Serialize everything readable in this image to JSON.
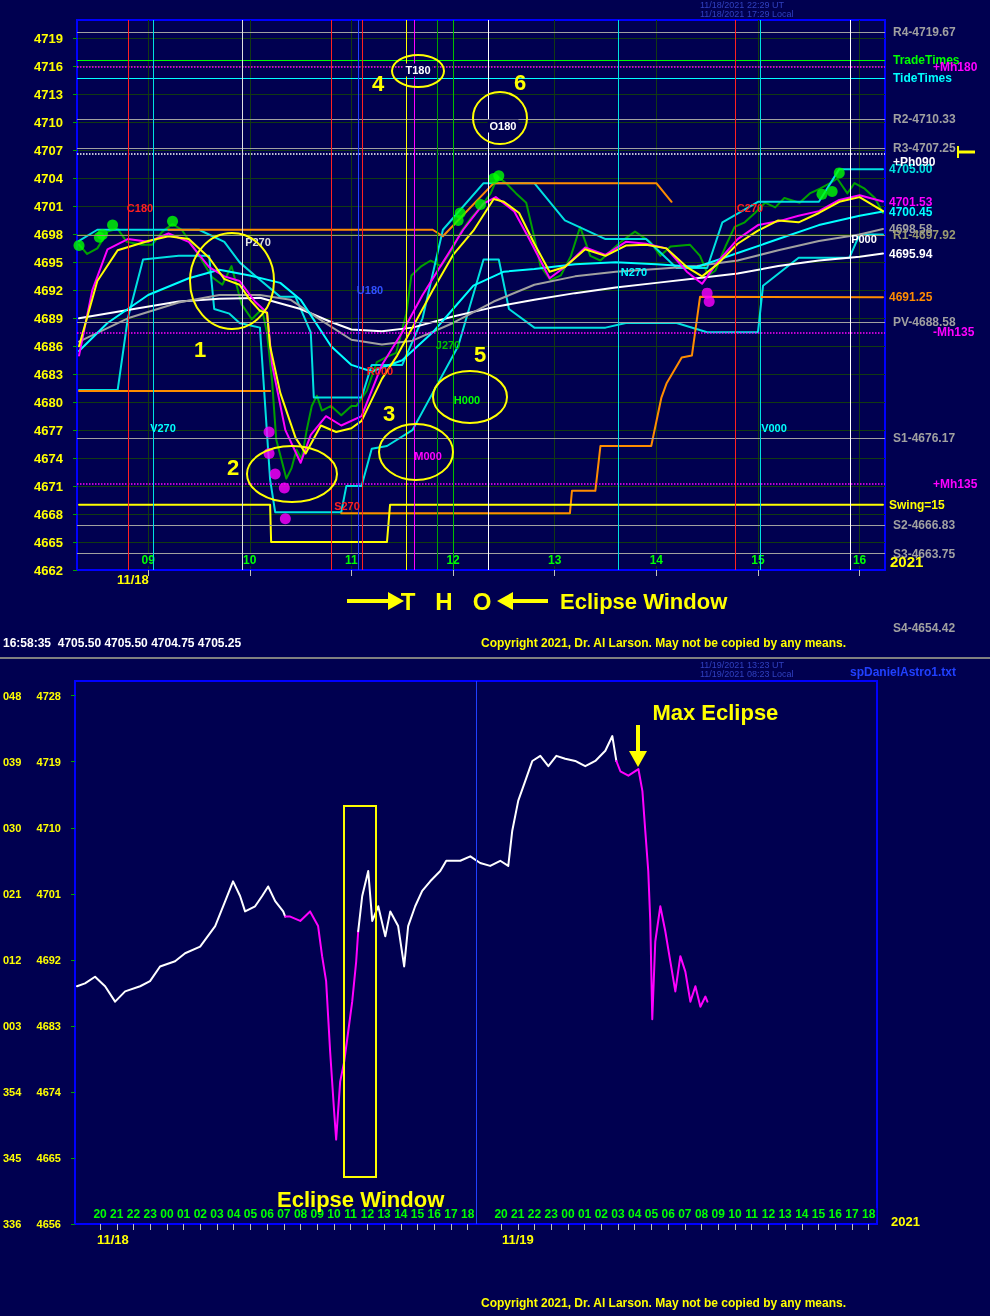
{
  "chart_data": [
    {
      "type": "line",
      "xlim": [
        8.3,
        16.25
      ],
      "xticks": [
        {
          "value": 9,
          "label": "09"
        },
        10,
        11,
        12,
        13,
        14,
        15,
        16
      ],
      "ylim": [
        4662,
        4721
      ],
      "yticks": [
        4662,
        4665,
        4668,
        4671,
        4674,
        4677,
        4680,
        4683,
        4686,
        4689,
        4692,
        4695,
        4698,
        4701,
        4704,
        4707,
        4710,
        4713,
        4716,
        4719
      ],
      "grid": true,
      "legend": false,
      "marker": "none",
      "line_style": "solid",
      "series": [
        {
          "color": "#00a000",
          "x": [
            8.32,
            8.4,
            8.5,
            8.6,
            8.7,
            8.79,
            8.94,
            9.04,
            9.14,
            9.24,
            9.33,
            9.43,
            9.53,
            9.63,
            9.73,
            9.82,
            9.92,
            10.02,
            10.12,
            10.17,
            10.22,
            10.26,
            10.31,
            10.36,
            10.41,
            10.46,
            10.51,
            10.56,
            10.61,
            10.66,
            10.71,
            10.8,
            10.9,
            11.0,
            11.05,
            11.15,
            11.25,
            11.34,
            11.44,
            11.54,
            11.59,
            11.69,
            11.78,
            11.88,
            11.98,
            12.08,
            12.18,
            12.27,
            12.37,
            12.44,
            12.52,
            12.62,
            12.72,
            12.81,
            12.86,
            12.96,
            13.06,
            13.16,
            13.25,
            13.35,
            13.45,
            13.55,
            13.65,
            13.79,
            13.94,
            14.04,
            14.14,
            14.33,
            14.43,
            14.51,
            14.58,
            14.68,
            14.77,
            14.87,
            14.97,
            15.07,
            15.17,
            15.26,
            15.41,
            15.51,
            15.61,
            15.71,
            15.78,
            15.88,
            15.95,
            16.05,
            16.15,
            16.23
          ],
          "values": [
            4696.9,
            4695.9,
            4696.5,
            4698.3,
            4698.6,
            4697.2,
            4696.9,
            4696.9,
            4698.3,
            4699.1,
            4698.5,
            4696.9,
            4695.2,
            4693.4,
            4692.6,
            4694.6,
            4690.5,
            4688.9,
            4690.0,
            4687.4,
            4682.2,
            4676.0,
            4673.9,
            4671.8,
            4672.9,
            4674.9,
            4673.9,
            4677.0,
            4679.6,
            4680.7,
            4679.1,
            4679.6,
            4678.6,
            4679.6,
            4679.6,
            4681.2,
            4684.3,
            4684.8,
            4685.3,
            4689.5,
            4693.6,
            4694.6,
            4695.2,
            4694.6,
            4696.2,
            4698.3,
            4699.8,
            4700.9,
            4702.4,
            4704.2,
            4703.5,
            4702.4,
            4701.4,
            4697.2,
            4694.6,
            4693.1,
            4693.6,
            4695.7,
            4698.8,
            4695.7,
            4695.2,
            4696.2,
            4697.2,
            4698.3,
            4697.2,
            4695.7,
            4696.7,
            4696.9,
            4695.7,
            4693.6,
            4694.1,
            4696.7,
            4698.8,
            4699.3,
            4700.3,
            4701.4,
            4700.9,
            4701.9,
            4701.4,
            4702.4,
            4702.9,
            4703.5,
            4704.0,
            4702.4,
            4703.5,
            4702.9,
            4701.9,
            4700.3
          ]
        },
        {
          "color": "#00e0e0",
          "x": [
            8.32,
            8.5,
            9.5,
            9.75,
            9.9,
            10.05,
            10.3,
            10.45,
            10.6,
            10.63,
            11.1,
            11.2,
            11.5,
            11.7,
            11.9,
            12.3,
            12.8,
            13.1,
            13.5,
            13.9,
            14.2,
            14.5,
            14.65,
            15.0,
            15.6,
            15.8,
            16.23
          ],
          "values": [
            4697.3,
            4698.5,
            4698.5,
            4697.2,
            4695,
            4693.6,
            4691.3,
            4691.3,
            4687.5,
            4680.5,
            4680.5,
            4684,
            4684,
            4689,
            4698.5,
            4703.5,
            4703.5,
            4699.5,
            4697.5,
            4697.5,
            4694.4,
            4694.4,
            4699.3,
            4701.5,
            4701.5,
            4705,
            4705
          ],
          "value_labels": [
            null,
            null,
            null,
            null,
            null,
            null,
            null,
            null,
            null,
            null,
            null,
            null,
            null,
            null,
            null,
            null,
            null,
            null,
            null,
            null,
            null,
            null,
            null,
            null,
            null,
            null,
            "4705.00"
          ]
        },
        {
          "color": "#00e0e0",
          "x": [
            8.32,
            8.7,
            8.8,
            8.95,
            9.3,
            9.6,
            9.65,
            9.8,
            9.9,
            10.1,
            10.2,
            10.25,
            10.9,
            10.95,
            11.1,
            11.2,
            11.35,
            11.6,
            11.8,
            12.05,
            12.3,
            12.45,
            12.55,
            12.8,
            13.5,
            13.7,
            14.2,
            14.5,
            15.0,
            15.05,
            15.4,
            15.9,
            16.0,
            16.23
          ],
          "values": [
            4681.3,
            4681.3,
            4689,
            4695.3,
            4695.7,
            4695.7,
            4690,
            4689.5,
            4688.5,
            4688,
            4671.7,
            4668.2,
            4668.2,
            4671,
            4671,
            4675,
            4675.3,
            4677,
            4681,
            4686,
            4695.3,
            4695.3,
            4690,
            4688,
            4688,
            4688.5,
            4688.5,
            4687.5,
            4687.5,
            4692.5,
            4695.5,
            4695.5,
            4698,
            4698
          ]
        },
        {
          "color": "#ff8c00",
          "x": [
            8.32,
            10.2,
            10.21,
            10.9,
            13.15,
            13.17,
            13.4,
            13.45,
            13.95,
            14.05,
            14.1,
            14.25,
            14.35,
            14.43,
            16.23
          ],
          "values": [
            4681.2,
            4681.2,
            null,
            4668.1,
            4668.1,
            4670.5,
            4670.5,
            4675.3,
            4675.3,
            4680.5,
            4682,
            4684.8,
            4685,
            4691.3,
            4691.25
          ],
          "value_labels": [
            null,
            null,
            null,
            null,
            null,
            null,
            null,
            null,
            null,
            null,
            null,
            null,
            null,
            null,
            "4691.25"
          ]
        },
        {
          "color": "#ff8c00",
          "x": [
            9.2,
            11.8,
            11.9,
            12.4,
            14.0,
            14.15
          ],
          "values": [
            4698.5,
            4698.5,
            4697.8,
            4703.5,
            4703.5,
            4701.5
          ]
        },
        {
          "name": "Swing=15",
          "color": "#ffff00",
          "x": [
            8.32,
            10.2,
            10.21,
            11.35,
            11.38,
            16.23
          ],
          "values": [
            4669,
            4669,
            4665,
            4665,
            4669,
            4669
          ]
        },
        {
          "color": "#ffffff",
          "x": [
            8.32,
            8.8,
            9.3,
            9.7,
            10.1,
            10.5,
            10.8,
            11.0,
            11.3,
            11.6,
            12.0,
            12.4,
            12.8,
            13.2,
            13.6,
            14.0,
            14.4,
            14.8,
            15.2,
            15.6,
            16.0,
            16.23
          ],
          "values": [
            4689,
            4689.9,
            4690.8,
            4691.1,
            4691.2,
            4690,
            4688.6,
            4687.8,
            4687.6,
            4688,
            4689.2,
            4690.2,
            4691,
            4691.7,
            4692.3,
            4692.8,
            4693.3,
            4693.8,
            4694.6,
            4695.2,
            4695.6,
            4695.94
          ],
          "value_labels": [
            null,
            null,
            null,
            null,
            null,
            null,
            null,
            null,
            null,
            null,
            null,
            null,
            null,
            null,
            null,
            null,
            null,
            null,
            null,
            null,
            null,
            "4695.94"
          ]
        },
        {
          "color": "#a0a0a0",
          "x": [
            8.32,
            8.8,
            9.3,
            9.7,
            10.1,
            10.4,
            10.7,
            11.0,
            11.3,
            11.6,
            12.0,
            12.4,
            12.8,
            13.2,
            13.6,
            14.0,
            14.4,
            14.8,
            15.2,
            15.6,
            16.0,
            16.23
          ],
          "values": [
            4686.5,
            4689,
            4690.7,
            4691.5,
            4691.5,
            4691,
            4688.8,
            4686.7,
            4686.2,
            4686.6,
            4688.5,
            4690.8,
            4692.6,
            4693.5,
            4694,
            4694.3,
            4694.6,
            4695.2,
            4696.3,
            4697.3,
            4698,
            4698.58
          ],
          "value_labels": [
            null,
            null,
            null,
            null,
            null,
            null,
            null,
            null,
            null,
            null,
            null,
            null,
            null,
            null,
            null,
            null,
            null,
            null,
            null,
            null,
            null,
            "4698.58"
          ]
        },
        {
          "color": "#00ffff",
          "x": [
            8.32,
            8.6,
            9.0,
            9.4,
            9.7,
            10.0,
            10.3,
            10.5,
            10.8,
            11.0,
            11.2,
            11.5,
            11.8,
            12.0,
            12.2,
            12.5,
            12.8,
            13.2,
            13.6,
            14.0,
            14.4,
            14.8,
            15.2,
            15.6,
            16.0,
            16.23
          ],
          "values": [
            4685.5,
            4688.5,
            4691.5,
            4693.3,
            4694.2,
            4693.6,
            4692.8,
            4691,
            4686,
            4684,
            4683.3,
            4684.5,
            4687.5,
            4690,
            4692.5,
            4694,
            4694.3,
            4694.8,
            4695,
            4694.8,
            4694.5,
            4696,
            4697.5,
            4699,
            4700,
            4700.45
          ],
          "value_labels": [
            null,
            null,
            null,
            null,
            null,
            null,
            null,
            null,
            null,
            null,
            null,
            null,
            null,
            null,
            null,
            null,
            null,
            null,
            null,
            null,
            null,
            null,
            null,
            null,
            null,
            "4700.45"
          ]
        },
        {
          "color": "#ff00ff",
          "x": [
            8.32,
            8.45,
            8.6,
            8.8,
            9.0,
            9.2,
            9.4,
            9.6,
            9.75,
            9.9,
            10.05,
            10.17,
            10.22,
            10.35,
            10.5,
            10.6,
            10.75,
            10.9,
            11.1,
            11.3,
            11.5,
            11.7,
            11.9,
            12.1,
            12.3,
            12.42,
            12.6,
            12.75,
            12.95,
            13.1,
            13.3,
            13.5,
            13.7,
            13.9,
            14.1,
            14.3,
            14.45,
            14.6,
            14.8,
            15.0,
            15.2,
            15.4,
            15.6,
            15.8,
            16.0,
            16.23
          ],
          "values": [
            4685,
            4692,
            4696.4,
            4697.5,
            4697.2,
            4698.1,
            4697.2,
            4694.5,
            4693.5,
            4693.0,
            4690.8,
            4689.6,
            4684,
            4677,
            4673.5,
            4676.5,
            4678.5,
            4677.5,
            4678.5,
            4684,
            4687.5,
            4691.5,
            4695,
            4698.5,
            4701.3,
            4702,
            4700.5,
            4697.5,
            4693.3,
            4694.5,
            4696.6,
            4695.8,
            4697.2,
            4697,
            4696.5,
            4694,
            4692.7,
            4695,
            4697.5,
            4699,
            4699.4,
            4700,
            4700.5,
            4701.7,
            4702.2,
            4701.53
          ],
          "value_labels": [
            null,
            null,
            null,
            null,
            null,
            null,
            null,
            null,
            null,
            null,
            null,
            null,
            null,
            null,
            null,
            null,
            null,
            null,
            null,
            null,
            null,
            null,
            null,
            null,
            null,
            null,
            null,
            null,
            null,
            null,
            null,
            null,
            null,
            null,
            null,
            null,
            null,
            null,
            null,
            null,
            null,
            null,
            null,
            null,
            null,
            "4701.53"
          ]
        },
        {
          "color": "#ffff00",
          "x": [
            8.32,
            8.5,
            8.7,
            9.0,
            9.2,
            9.4,
            9.6,
            9.75,
            9.9,
            10.0,
            10.1,
            10.17,
            10.2,
            10.3,
            10.45,
            10.55,
            10.7,
            10.85,
            11.0,
            11.1,
            11.3,
            11.45,
            11.6,
            11.8,
            12.0,
            12.2,
            12.4,
            12.5,
            12.65,
            12.8,
            12.95,
            13.1,
            13.3,
            13.5,
            13.7,
            13.9,
            14.1,
            14.3,
            14.45,
            14.6,
            14.8,
            15.0,
            15.2,
            15.4,
            15.6,
            15.8,
            16.0,
            16.23
          ],
          "values": [
            4686,
            4693,
            4696.3,
            4697.3,
            4697.8,
            4697.5,
            4695.5,
            4693.2,
            4692.6,
            4691.0,
            4689.8,
            4689.6,
            4686,
            4681,
            4676.2,
            4674.5,
            4677.5,
            4676.8,
            4677.2,
            4678,
            4682.5,
            4685,
            4688,
            4692,
            4695.8,
            4698.4,
            4701.8,
            4701.5,
            4700.3,
            4697,
            4694,
            4694.5,
            4696.4,
            4695.7,
            4696.8,
            4696.9,
            4696.5,
            4694.5,
            4693.5,
            4694.8,
            4697,
            4698.4,
            4699.5,
            4699.3,
            4700.3,
            4701.5,
            4702,
            4700.5
          ]
        },
        {
          "type": "scatter",
          "marker": "circle",
          "color": "#00ff00",
          "x": [
            8.32,
            8.52,
            8.55,
            8.65,
            9.24,
            12.05,
            12.07,
            12.27,
            12.4,
            12.45,
            15.63,
            15.73,
            15.8
          ],
          "values": [
            4696.8,
            4697.7,
            4698,
            4699,
            4699.4,
            4699.5,
            4700.3,
            4701.2,
            4704,
            4704.3,
            4702.3,
            4702.6,
            4704.6
          ]
        },
        {
          "type": "scatter",
          "marker": "circle",
          "color": "#ff00ff",
          "x": [
            10.19,
            10.19,
            10.25,
            10.34,
            10.35,
            14.5,
            14.52
          ],
          "values": [
            4676.8,
            4674.5,
            4672.3,
            4670.8,
            4667.5,
            4691.7,
            4690.8
          ]
        }
      ],
      "ref_lines": [
        {
          "axis": "y",
          "value": 4719.67,
          "label": "R4-4719.67",
          "color": "#a0a0a0"
        },
        {
          "axis": "y",
          "value": 4716.7,
          "label": "TradeTimes",
          "color": "#00ff00"
        },
        {
          "axis": "y",
          "value": 4716.0,
          "label": "+Mh180",
          "color": "#ff00ff",
          "line_style": "dotted"
        },
        {
          "axis": "y",
          "value": 4714.8,
          "label": "TideTimes",
          "color": "#00ffff"
        },
        {
          "axis": "y",
          "value": 4710.33,
          "label": "R2-4710.33",
          "color": "#a0a0a0"
        },
        {
          "axis": "y",
          "value": 4707.25,
          "label": "R3-4707.25",
          "color": "#a0a0a0"
        },
        {
          "axis": "y",
          "value": 4706.6,
          "label": "+Ph090",
          "color": "#ffffff",
          "line_style": "dotted"
        },
        {
          "axis": "y",
          "value": 4697.92,
          "label": "R1-4697.92",
          "color": "#9a9a70"
        },
        {
          "axis": "y",
          "value": 4688.58,
          "label": "PV-4688.58",
          "color": "#a0a0a0"
        },
        {
          "axis": "y",
          "value": 4687.5,
          "label": "-Mh135",
          "color": "#ff00ff",
          "line_style": "dotted"
        },
        {
          "axis": "y",
          "value": 4676.17,
          "label": "S1-4676.17",
          "color": "#a0a0a0"
        },
        {
          "axis": "y",
          "value": 4671.2,
          "label": "+Mh135",
          "color": "#ff00ff",
          "line_style": "dotted"
        },
        {
          "axis": "y",
          "value": 4666.83,
          "label": "S2-4666.83",
          "color": "#a0a0a0"
        },
        {
          "axis": "y",
          "value": 4663.75,
          "label": "S3-4663.75",
          "color": "#a0a0a0"
        },
        {
          "axis": "x",
          "value": 8.8,
          "color": "#ff2020"
        },
        {
          "axis": "x",
          "value": 9.05,
          "color": "#00e0e0"
        },
        {
          "axis": "x",
          "value": 9.93,
          "color": "#e0e0e0"
        },
        {
          "axis": "x",
          "value": 10.8,
          "color": "#ff2020"
        },
        {
          "axis": "x",
          "value": 11.07,
          "color": "#2040ff"
        },
        {
          "axis": "x",
          "value": 11.11,
          "color": "#ff2020"
        },
        {
          "axis": "x",
          "value": 11.54,
          "color": "#ffff00"
        },
        {
          "axis": "x",
          "value": 11.62,
          "color": "#ff00ff"
        },
        {
          "axis": "x",
          "value": 11.84,
          "color": "#00a000"
        },
        {
          "axis": "x",
          "value": 12.0,
          "color": "#00c000"
        },
        {
          "axis": "x",
          "value": 12.35,
          "color": "#ffffff"
        },
        {
          "axis": "x",
          "value": 13.63,
          "color": "#00e0e0"
        },
        {
          "axis": "x",
          "value": 14.78,
          "color": "#ff2020"
        },
        {
          "axis": "x",
          "value": 15.02,
          "color": "#00e0e0"
        },
        {
          "axis": "x",
          "value": 15.91,
          "color": "#ffffff"
        }
      ],
      "annotations": [
        "11/18",
        "2021",
        "T",
        "H",
        "O",
        "Eclipse Window",
        "16:58:35  4705.50 4705.50 4704.75 4705.25",
        "Copyright 2021, Dr. Al Larson. May not be copied by any means.",
        "S4-4654.42",
        "11/18/2021 22:29 UT",
        "11/18/2021 17:29 Local",
        "C180",
        "P270",
        "U180",
        "T180",
        "O180",
        "V270",
        "R000",
        "J270",
        "H000",
        "M000",
        "S270",
        "N270",
        "C270",
        "V000",
        "P000",
        "1",
        "2",
        "3",
        "4",
        "5",
        "6"
      ]
    },
    {
      "type": "line",
      "xlim": [
        18.5,
        66.5
      ],
      "xticks": [
        {
          "value": 20,
          "label": "20"
        },
        {
          "value": 21,
          "label": "21"
        },
        {
          "value": 22,
          "label": "22"
        },
        {
          "value": 23,
          "label": "23"
        },
        {
          "value": 24,
          "label": "00"
        },
        {
          "value": 25,
          "label": "01"
        },
        {
          "value": 26,
          "label": "02"
        },
        {
          "value": 27,
          "label": "03"
        },
        {
          "value": 28,
          "label": "04"
        },
        {
          "value": 29,
          "label": "05"
        },
        {
          "value": 30,
          "label": "06"
        },
        {
          "value": 31,
          "label": "07"
        },
        {
          "value": 32,
          "label": "08"
        },
        {
          "value": 33,
          "label": "09"
        },
        {
          "value": 34,
          "label": "10"
        },
        {
          "value": 35,
          "label": "11"
        },
        {
          "value": 36,
          "label": "12"
        },
        {
          "value": 37,
          "label": "13"
        },
        {
          "value": 38,
          "label": "14"
        },
        {
          "value": 39,
          "label": "15"
        },
        {
          "value": 40,
          "label": "16"
        },
        {
          "value": 41,
          "label": "17"
        },
        {
          "value": 42,
          "label": "18"
        },
        {
          "value": 44,
          "label": "20"
        },
        {
          "value": 45,
          "label": "21"
        },
        {
          "value": 46,
          "label": "22"
        },
        {
          "value": 47,
          "label": "23"
        },
        {
          "value": 48,
          "label": "00"
        },
        {
          "value": 49,
          "label": "01"
        },
        {
          "value": 50,
          "label": "02"
        },
        {
          "value": 51,
          "label": "03"
        },
        {
          "value": 52,
          "label": "04"
        },
        {
          "value": 53,
          "label": "05"
        },
        {
          "value": 54,
          "label": "06"
        },
        {
          "value": 55,
          "label": "07"
        },
        {
          "value": 56,
          "label": "08"
        },
        {
          "value": 57,
          "label": "09"
        },
        {
          "value": 58,
          "label": "10"
        },
        {
          "value": 59,
          "label": "11"
        },
        {
          "value": 60,
          "label": "12"
        },
        {
          "value": 61,
          "label": "13"
        },
        {
          "value": 62,
          "label": "14"
        },
        {
          "value": 63,
          "label": "15"
        },
        {
          "value": 64,
          "label": "16"
        },
        {
          "value": 65,
          "label": "17"
        },
        {
          "value": 66,
          "label": "18"
        }
      ],
      "ylim": [
        4656,
        4730
      ],
      "yticks": [
        4656,
        4665,
        4674,
        4683,
        4692,
        4701,
        4710,
        4719,
        4728
      ],
      "grid": false,
      "legend": false,
      "marker": "none",
      "line_style": "solid",
      "series": [
        {
          "color": "#ffffff",
          "x": [
            18.62,
            19.1,
            19.7,
            20.3,
            20.9,
            21.5,
            22.4,
            22.99,
            23.59,
            24.49,
            25.09,
            25.99,
            26.89,
            27.49,
            27.96,
            28.38,
            28.68,
            29.28,
            29.7,
            30.06,
            30.48,
            30.96,
            31.08
          ],
          "values": [
            4688.4,
            4688.8,
            4689.7,
            4688.4,
            4686.3,
            4687.7,
            4688.4,
            4689.1,
            4691.1,
            4691.8,
            4692.9,
            4693.8,
            4696.6,
            4700.0,
            4702.7,
            4700.7,
            4698.6,
            4699.3,
            4700.7,
            4702.0,
            4700.0,
            4698.6,
            4697.9
          ]
        },
        {
          "color": "#ff00ff",
          "x": [
            31.08,
            31.38,
            31.98,
            32.57,
            33.05,
            33.29,
            33.53,
            33.77,
            34.01,
            34.13,
            34.37,
            34.61,
            34.85,
            35.09,
            35.33,
            35.45
          ],
          "values": [
            4697.9,
            4697.9,
            4697.3,
            4698.6,
            4696.6,
            4692.5,
            4689.1,
            4679.5,
            4671.3,
            4667.5,
            4675.4,
            4678.1,
            4682.2,
            4686.3,
            4691.8,
            4695.9
          ]
        },
        {
          "color": "#ffffff",
          "x": [
            35.45,
            35.69,
            36.05,
            36.29,
            36.65,
            37.07,
            37.37,
            37.84,
            38.2,
            38.44,
            38.86,
            39.28,
            39.76,
            40.36,
            40.72,
            41.08,
            41.56,
            42.16,
            42.75,
            43.35,
            43.95,
            44.43,
            44.67,
            45.03,
            45.45,
            45.87,
            46.35,
            46.83,
            47.31,
            47.84,
            48.44,
            49.04,
            49.64,
            50.24,
            50.66,
            50.9
          ],
          "values": [
            4695.9,
            4700.7,
            4704.1,
            4697.3,
            4699.3,
            4695.2,
            4698.6,
            4696.6,
            4691.1,
            4696.6,
            4699.3,
            4701.4,
            4702.7,
            4704.1,
            4705.5,
            4705.5,
            4705.5,
            4706.1,
            4705.2,
            4704.8,
            4705.5,
            4704.8,
            4709.6,
            4713.7,
            4716.4,
            4719.1,
            4719.8,
            4718.4,
            4719.8,
            4719.4,
            4719.1,
            4718.4,
            4719.1,
            4720.5,
            4722.5,
            4719.1
          ]
        },
        {
          "color": "#ff00ff",
          "x": [
            50.9,
            51.14,
            51.62,
            52.22,
            52.46,
            52.63,
            52.81,
            52.93,
            53.05,
            53.23,
            53.53,
            53.83,
            54.13,
            54.43,
            54.73,
            55.03,
            55.33,
            55.63,
            55.93,
            56.23,
            56.35
          ],
          "values": [
            4719.1,
            4717.7,
            4717.1,
            4718.0,
            4715.0,
            4709.6,
            4704.1,
            4697.3,
            4683.9,
            4694.5,
            4699.3,
            4695.9,
            4691.8,
            4687.7,
            4692.5,
            4690.4,
            4686.3,
            4688.4,
            4685.6,
            4687.0,
            4686.3
          ]
        }
      ],
      "ref_lines": [
        {
          "axis": "x",
          "value": 42.5,
          "color": "#2040ff"
        }
      ],
      "annotations": [
        "Eclipse Window",
        "11/18",
        "11/19",
        "2021",
        "11/19/2021 13:23 UT",
        "11/19/2021 08:23 Local",
        "spDanielAstro1.txt",
        "Copyright 2021, Dr. Al Larson. May not be copied by any means.",
        "336",
        "345",
        "354",
        "003",
        "012",
        "021",
        "030",
        "039",
        "048",
        {
          "text": "Max Eclipse",
          "x": 52.22,
          "y": 4718.4
        }
      ]
    }
  ]
}
